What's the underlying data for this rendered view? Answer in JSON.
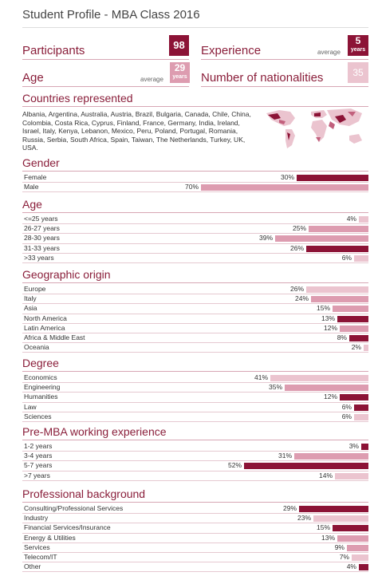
{
  "title": "Student Profile - MBA Class 2016",
  "colors": {
    "dark": "#8c1336",
    "light": "#dd9cb0",
    "lighter": "#ebc4cf",
    "accent_text": "#8a1e3a"
  },
  "kpis": {
    "participants": {
      "label": "Participants",
      "value": "98"
    },
    "experience": {
      "label": "Experience",
      "sub": "average",
      "value": "5",
      "unit": "years"
    },
    "age": {
      "label": "Age",
      "sub": "average",
      "value": "29",
      "unit": "years"
    },
    "nationalities": {
      "label": "Number of nationalities",
      "value": "35"
    }
  },
  "countries": {
    "title": "Countries represented",
    "text": "Albania, Argentina, Australia, Austria, Brazil, Bulgaria, Canada, Chile, China, Colombia, Costa Rica, Cyprus, Finland, France, Germany, India, Ireland, Israel, Italy, Kenya, Lebanon, Mexico, Peru, Poland, Portugal, Romania, Russia, Serbia, South Africa, Spain, Taiwan, The Netherlands, Turkey, UK, USA."
  },
  "chart_data": [
    {
      "type": "bar",
      "title": "Gender",
      "categories": [
        "Female",
        "Male"
      ],
      "values": [
        30,
        70
      ],
      "value_labels": [
        "30%",
        "70%"
      ],
      "shades": [
        "dark",
        "light"
      ]
    },
    {
      "type": "bar",
      "title": "Age",
      "categories": [
        "<=25 years",
        "26-27 years",
        "28-30 years",
        "31-33 years",
        ">33 years"
      ],
      "values": [
        4,
        25,
        39,
        26,
        6
      ],
      "value_labels": [
        "4%",
        "25%",
        "39%",
        "26%",
        "6%"
      ],
      "shades": [
        "lighter",
        "light",
        "light",
        "dark",
        "lighter"
      ]
    },
    {
      "type": "bar",
      "title": "Geographic origin",
      "categories": [
        "Europe",
        "Italy",
        "Asia",
        "North America",
        "Latin America",
        "Africa & Middle East",
        "Oceania"
      ],
      "values": [
        26,
        24,
        15,
        13,
        12,
        8,
        2
      ],
      "value_labels": [
        "26%",
        "24%",
        "15%",
        "13%",
        "12%",
        "8%",
        "2%"
      ],
      "shades": [
        "lighter",
        "light",
        "light",
        "dark",
        "light",
        "dark",
        "lighter"
      ]
    },
    {
      "type": "bar",
      "title": "Degree",
      "categories": [
        "Economics",
        "Engineering",
        "Humanities",
        "Law",
        "Sciences"
      ],
      "values": [
        41,
        35,
        12,
        6,
        6
      ],
      "value_labels": [
        "41%",
        "35%",
        "12%",
        "6%",
        "6%"
      ],
      "shades": [
        "lighter",
        "light",
        "dark",
        "dark",
        "lighter"
      ]
    },
    {
      "type": "bar",
      "title": "Pre-MBA working experience",
      "categories": [
        "1-2 years",
        "3-4 years",
        "5-7 years",
        ">7 years"
      ],
      "values": [
        3,
        31,
        52,
        14
      ],
      "value_labels": [
        "3%",
        "31%",
        "52%",
        "14%"
      ],
      "shades": [
        "dark",
        "light",
        "dark",
        "lighter"
      ]
    },
    {
      "type": "bar",
      "title": "Professional background",
      "categories": [
        "Consulting/Professional Services",
        "Industry",
        "Financial Services/Insurance",
        "Energy & Utilities",
        "Services",
        "Telecom/IT",
        "Other"
      ],
      "values": [
        29,
        23,
        15,
        13,
        9,
        7,
        4
      ],
      "value_labels": [
        "29%",
        "23%",
        "15%",
        "13%",
        "9%",
        "7%",
        "4%"
      ],
      "shades": [
        "dark",
        "lighter",
        "dark",
        "light",
        "light",
        "lighter",
        "dark"
      ]
    }
  ]
}
